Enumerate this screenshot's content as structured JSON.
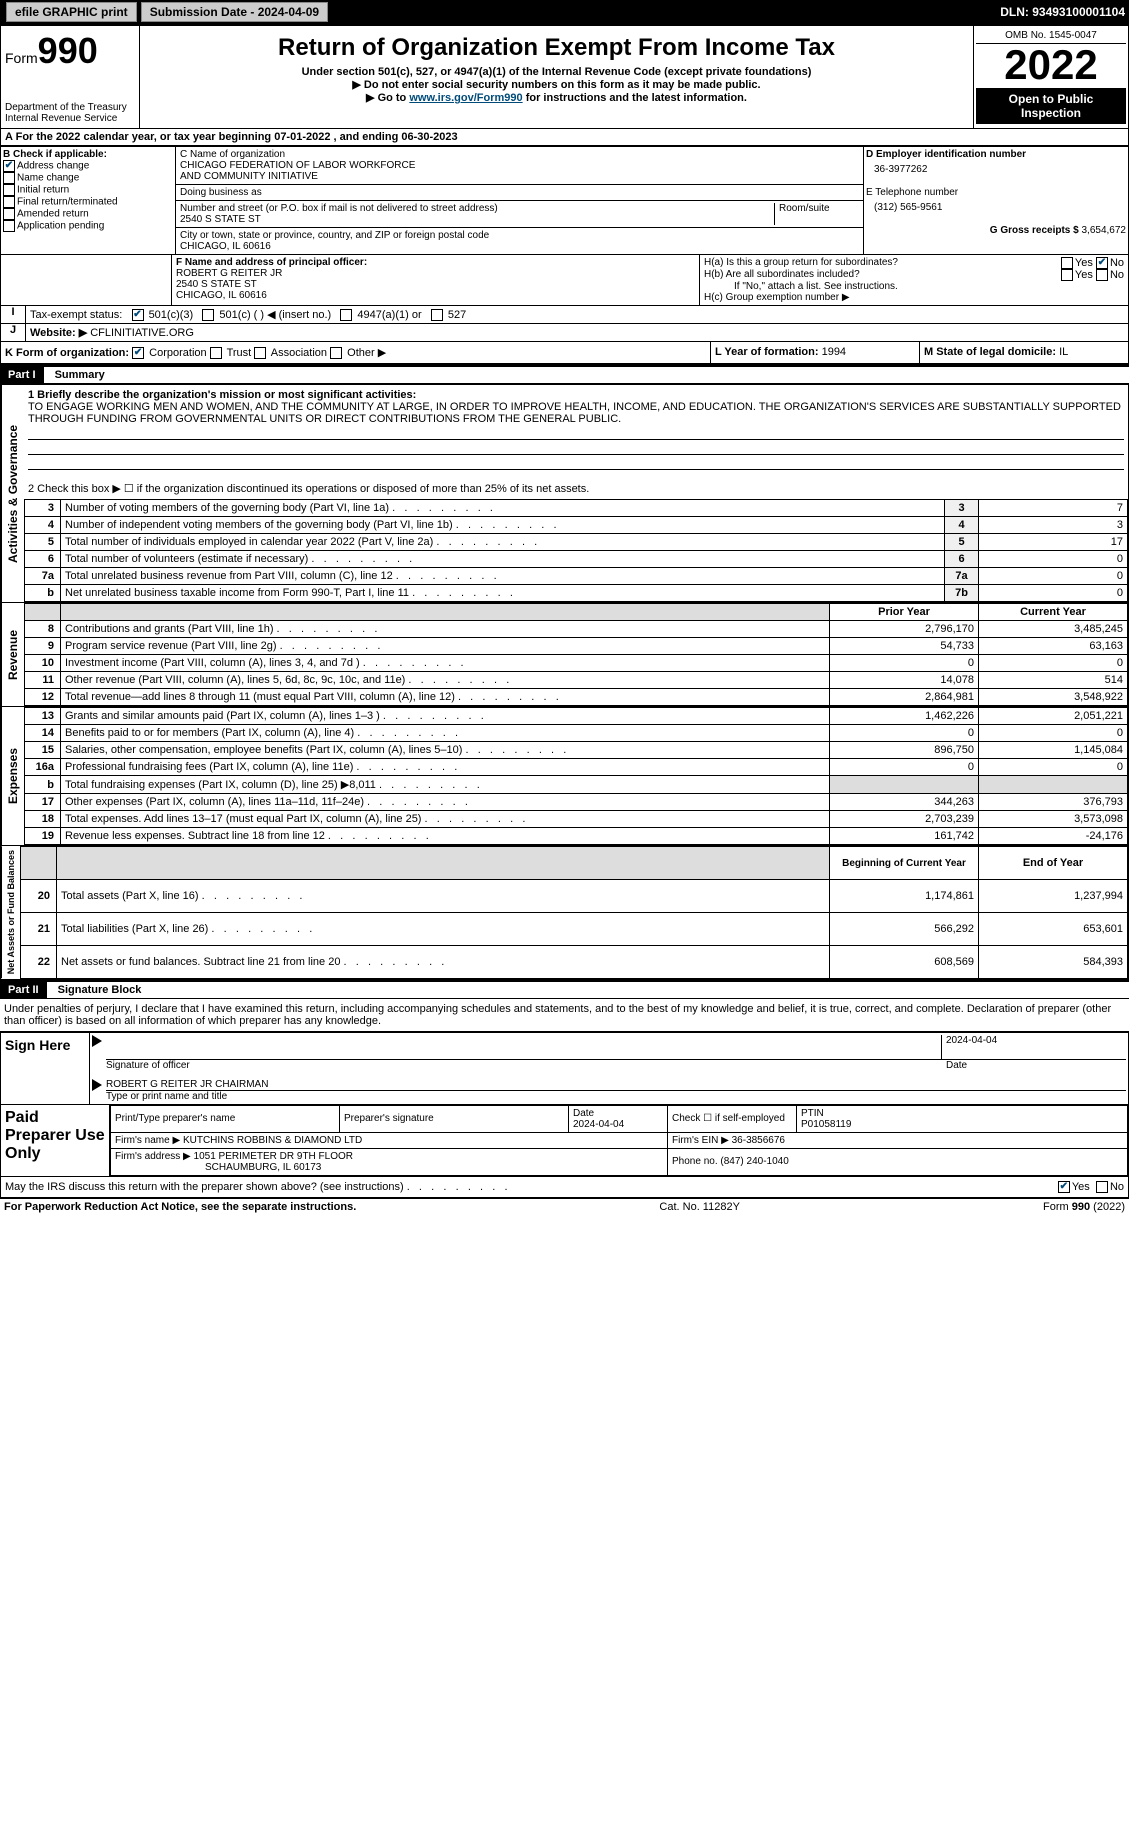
{
  "topbar": {
    "efile": "efile GRAPHIC print",
    "submission_label": "Submission Date - 2024-04-09",
    "dln": "DLN: 93493100001104"
  },
  "header": {
    "form_prefix": "Form",
    "form_num": "990",
    "dept": "Department of the Treasury",
    "irs": "Internal Revenue Service",
    "title": "Return of Organization Exempt From Income Tax",
    "subtitle": "Under section 501(c), 527, or 4947(a)(1) of the Internal Revenue Code (except private foundations)",
    "note1": "▶ Do not enter social security numbers on this form as it may be made public.",
    "note2_pre": "▶ Go to ",
    "note2_link": "www.irs.gov/Form990",
    "note2_post": " for instructions and the latest information.",
    "omb": "OMB No. 1545-0047",
    "year": "2022",
    "open": "Open to Public Inspection"
  },
  "lineA": "For the 2022 calendar year, or tax year beginning 07-01-2022    , and ending 06-30-2023",
  "boxB": {
    "label": "B Check if applicable:",
    "addr_change": "Address change",
    "name_change": "Name change",
    "initial": "Initial return",
    "final": "Final return/terminated",
    "amended": "Amended return",
    "app_pending": "Application pending"
  },
  "boxC": {
    "label": "C Name of organization",
    "name1": "CHICAGO FEDERATION OF LABOR WORKFORCE",
    "name2": "AND COMMUNITY INITIATIVE",
    "dba": "Doing business as",
    "street_label": "Number and street (or P.O. box if mail is not delivered to street address)",
    "room_label": "Room/suite",
    "street": "2540 S STATE ST",
    "city_label": "City or town, state or province, country, and ZIP or foreign postal code",
    "city": "CHICAGO, IL  60616"
  },
  "boxD": {
    "label": "D Employer identification number",
    "ein": "36-3977262",
    "e_label": "E Telephone number",
    "phone": "(312) 565-9561",
    "g_label": "G Gross receipts $",
    "gross": "3,654,672"
  },
  "boxF": {
    "label": "F  Name and address of principal officer:",
    "name": "ROBERT G REITER JR",
    "addr": "2540 S STATE ST",
    "city": "CHICAGO, IL  60616"
  },
  "boxH": {
    "ha": "H(a)  Is this a group return for subordinates?",
    "hb": "H(b)  Are all subordinates included?",
    "hb_note": "If \"No,\" attach a list. See instructions.",
    "hc": "H(c)  Group exemption number ▶",
    "yes": "Yes",
    "no": "No"
  },
  "tax_status": {
    "label": "Tax-exempt status:",
    "c3": "501(c)(3)",
    "c_other": "501(c) (  ) ◀ (insert no.)",
    "a1": "4947(a)(1) or",
    "s527": "527"
  },
  "website": {
    "label": "Website: ▶",
    "value": "CFLINITIATIVE.ORG"
  },
  "formK": {
    "label": "K Form of organization:",
    "corp": "Corporation",
    "trust": "Trust",
    "assoc": "Association",
    "other": "Other ▶"
  },
  "formL": {
    "label": "L Year of formation:",
    "value": "1994"
  },
  "formM": {
    "label": "M State of legal domicile:",
    "value": "IL"
  },
  "part1": {
    "header": "Part I",
    "title": "Summary",
    "q1": "1  Briefly describe the organization's mission or most significant activities:",
    "mission": "TO ENGAGE WORKING MEN AND WOMEN, AND THE COMMUNITY AT LARGE, IN ORDER TO IMPROVE HEALTH, INCOME, AND EDUCATION. THE ORGANIZATION'S SERVICES ARE SUBSTANTIALLY SUPPORTED THROUGH FUNDING FROM GOVERNMENTAL UNITS OR DIRECT CONTRIBUTIONS FROM THE GENERAL PUBLIC.",
    "q2": "2  Check this box ▶ ☐ if the organization discontinued its operations or disposed of more than 25% of its net assets.",
    "lines_gov": [
      {
        "n": "3",
        "t": "Number of voting members of the governing body (Part VI, line 1a)",
        "box": "3",
        "v": "7"
      },
      {
        "n": "4",
        "t": "Number of independent voting members of the governing body (Part VI, line 1b)",
        "box": "4",
        "v": "3"
      },
      {
        "n": "5",
        "t": "Total number of individuals employed in calendar year 2022 (Part V, line 2a)",
        "box": "5",
        "v": "17"
      },
      {
        "n": "6",
        "t": "Total number of volunteers (estimate if necessary)",
        "box": "6",
        "v": "0"
      },
      {
        "n": "7a",
        "t": "Total unrelated business revenue from Part VIII, column (C), line 12",
        "box": "7a",
        "v": "0"
      },
      {
        "n": "b",
        "t": "Net unrelated business taxable income from Form 990-T, Part I, line 11",
        "box": "7b",
        "v": "0"
      }
    ],
    "col_prior": "Prior Year",
    "col_current": "Current Year",
    "revenue": [
      {
        "n": "8",
        "t": "Contributions and grants (Part VIII, line 1h)",
        "p": "2,796,170",
        "c": "3,485,245"
      },
      {
        "n": "9",
        "t": "Program service revenue (Part VIII, line 2g)",
        "p": "54,733",
        "c": "63,163"
      },
      {
        "n": "10",
        "t": "Investment income (Part VIII, column (A), lines 3, 4, and 7d )",
        "p": "0",
        "c": "0"
      },
      {
        "n": "11",
        "t": "Other revenue (Part VIII, column (A), lines 5, 6d, 8c, 9c, 10c, and 11e)",
        "p": "14,078",
        "c": "514"
      },
      {
        "n": "12",
        "t": "Total revenue—add lines 8 through 11 (must equal Part VIII, column (A), line 12)",
        "p": "2,864,981",
        "c": "3,548,922"
      }
    ],
    "expenses": [
      {
        "n": "13",
        "t": "Grants and similar amounts paid (Part IX, column (A), lines 1–3 )",
        "p": "1,462,226",
        "c": "2,051,221"
      },
      {
        "n": "14",
        "t": "Benefits paid to or for members (Part IX, column (A), line 4)",
        "p": "0",
        "c": "0"
      },
      {
        "n": "15",
        "t": "Salaries, other compensation, employee benefits (Part IX, column (A), lines 5–10)",
        "p": "896,750",
        "c": "1,145,084"
      },
      {
        "n": "16a",
        "t": "Professional fundraising fees (Part IX, column (A), line 11e)",
        "p": "0",
        "c": "0"
      },
      {
        "n": "b",
        "t": "Total fundraising expenses (Part IX, column (D), line 25) ▶8,011",
        "p": "",
        "c": ""
      },
      {
        "n": "17",
        "t": "Other expenses (Part IX, column (A), lines 11a–11d, 11f–24e)",
        "p": "344,263",
        "c": "376,793"
      },
      {
        "n": "18",
        "t": "Total expenses. Add lines 13–17 (must equal Part IX, column (A), line 25)",
        "p": "2,703,239",
        "c": "3,573,098"
      },
      {
        "n": "19",
        "t": "Revenue less expenses. Subtract line 18 from line 12",
        "p": "161,742",
        "c": "-24,176"
      }
    ],
    "col_begin": "Beginning of Current Year",
    "col_end": "End of Year",
    "net": [
      {
        "n": "20",
        "t": "Total assets (Part X, line 16)",
        "p": "1,174,861",
        "c": "1,237,994"
      },
      {
        "n": "21",
        "t": "Total liabilities (Part X, line 26)",
        "p": "566,292",
        "c": "653,601"
      },
      {
        "n": "22",
        "t": "Net assets or fund balances. Subtract line 21 from line 20",
        "p": "608,569",
        "c": "584,393"
      }
    ],
    "side_gov": "Activities & Governance",
    "side_rev": "Revenue",
    "side_exp": "Expenses",
    "side_net": "Net Assets or Fund Balances"
  },
  "part2": {
    "header": "Part II",
    "title": "Signature Block",
    "decl": "Under penalties of perjury, I declare that I have examined this return, including accompanying schedules and statements, and to the best of my knowledge and belief, it is true, correct, and complete. Declaration of preparer (other than officer) is based on all information of which preparer has any knowledge.",
    "sign_here": "Sign Here",
    "sig_officer": "Signature of officer",
    "date": "Date",
    "date_val": "2024-04-04",
    "officer_name": "ROBERT G REITER JR  CHAIRMAN",
    "type_name": "Type or print name and title",
    "paid": "Paid Preparer Use Only",
    "print_name": "Print/Type preparer's name",
    "prep_sig": "Preparer's signature",
    "prep_date": "2024-04-04",
    "self_emp": "Check ☐ if self-employed",
    "ptin_label": "PTIN",
    "ptin": "P01058119",
    "firm_name_label": "Firm's name    ▶",
    "firm_name": "KUTCHINS ROBBINS & DIAMOND LTD",
    "firm_ein_label": "Firm's EIN ▶",
    "firm_ein": "36-3856676",
    "firm_addr_label": "Firm's address ▶",
    "firm_addr1": "1051 PERIMETER DR 9TH FLOOR",
    "firm_addr2": "SCHAUMBURG, IL  60173",
    "phone_label": "Phone no.",
    "phone": "(847) 240-1040",
    "discuss": "May the IRS discuss this return with the preparer shown above? (see instructions)"
  },
  "footer": {
    "left": "For Paperwork Reduction Act Notice, see the separate instructions.",
    "mid": "Cat. No. 11282Y",
    "right": "Form 990 (2022)"
  }
}
